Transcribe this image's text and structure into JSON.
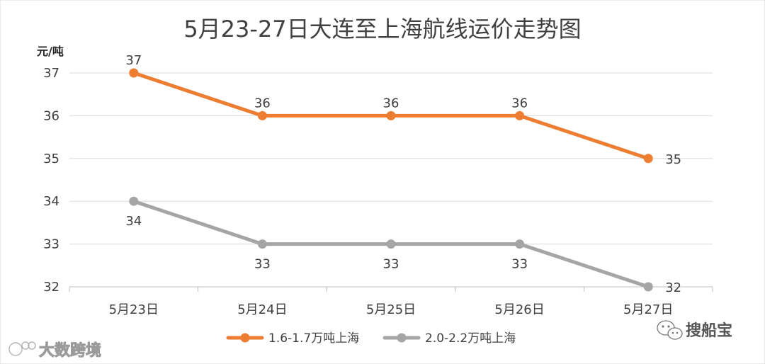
{
  "chart_data": {
    "type": "line",
    "title": "5月23-27日大连至上海航线运价走势图",
    "ylabel": "元/吨",
    "xlabel": "",
    "categories": [
      "5月23日",
      "5月24日",
      "5月25日",
      "5月26日",
      "5月27日"
    ],
    "ylim": [
      32,
      37
    ],
    "yticks": [
      32,
      33,
      34,
      35,
      36,
      37
    ],
    "grid": true,
    "legend": "bottom",
    "series": [
      {
        "name": "1.6-1.7万吨上海",
        "values": [
          37,
          36,
          36,
          36,
          35
        ],
        "color": "#ED7D31"
      },
      {
        "name": "2.0-2.2万吨上海",
        "values": [
          34,
          33,
          33,
          33,
          32
        ],
        "color": "#A5A5A5"
      }
    ]
  },
  "watermarks": {
    "left": "大数跨境",
    "right": "搜船宝"
  }
}
